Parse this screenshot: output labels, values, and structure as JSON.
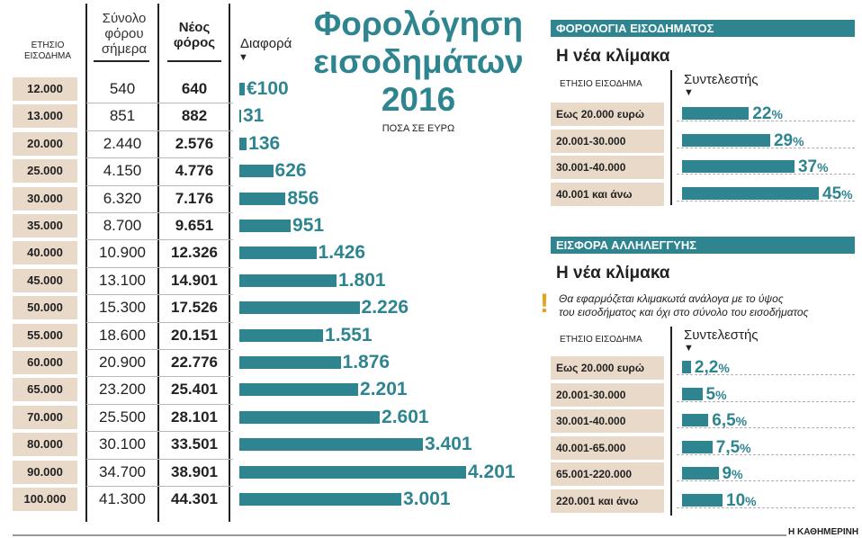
{
  "title": "Φορολόγηση εισοδημάτων 2016",
  "title_lines": [
    "Φορολόγηση",
    "εισοδημάτων",
    "2016"
  ],
  "subtitle": "ΠΟΣΑ ΣΕ ΕΥΡΩ",
  "columns": {
    "income": [
      "ΕΤΗΣΙΟ",
      "ΕΙΣΟΔΗΜΑ"
    ],
    "current_tax": [
      "Σύνολο",
      "φόρου",
      "σήμερα"
    ],
    "new_tax": [
      "Νέος",
      "φόρος"
    ],
    "difference": "Διαφορά",
    "arrow": "▼"
  },
  "colors": {
    "accent": "#2e8590",
    "cell_bg": "#e8d9c8"
  },
  "chart_data": [
    {
      "type": "bar",
      "orientation": "horizontal",
      "title": "Φορολόγηση εισοδημάτων 2016",
      "categories": [
        "12.000",
        "13.000",
        "20.000",
        "25.000",
        "30.000",
        "35.000",
        "40.000",
        "45.000",
        "50.000",
        "55.000",
        "60.000",
        "65.000",
        "70.000",
        "80.000",
        "90.000",
        "100.000"
      ],
      "current_tax": [
        "540",
        "851",
        "2.440",
        "4.150",
        "6.320",
        "8.700",
        "10.900",
        "13.100",
        "15.300",
        "18.600",
        "20.900",
        "23.200",
        "25.500",
        "30.100",
        "34.700",
        "41.300"
      ],
      "new_tax": [
        "640",
        "882",
        "2.576",
        "4.776",
        "7.176",
        "9.651",
        "12.326",
        "14.901",
        "17.526",
        "20.151",
        "22.776",
        "25.401",
        "28.101",
        "33.501",
        "38.901",
        "44.301"
      ],
      "values": [
        100,
        31,
        136,
        626,
        856,
        951,
        1426,
        1801,
        2226,
        1551,
        1876,
        2201,
        2601,
        3401,
        4201,
        3001
      ],
      "value_labels": [
        "€100",
        "31",
        "136",
        "626",
        "856",
        "951",
        "1.426",
        "1.801",
        "2.226",
        "1.551",
        "1.876",
        "2.201",
        "2.601",
        "3.401",
        "4.201",
        "3.001"
      ],
      "xlabel": "Διαφορά",
      "xlim": [
        0,
        4201
      ]
    },
    {
      "type": "bar",
      "orientation": "horizontal",
      "title": "ΦΟΡΟΛΟΓΙΑ ΕΙΣΟΔΗΜΑΤΟΣ",
      "subtitle": "Η νέα κλίμακα",
      "category_header": "ΕΤΗΣΙΟ ΕΙΣΟΔΗΜΑ",
      "value_header": "Συντελεστής",
      "categories": [
        "Εως 20.000 ευρώ",
        "20.001-30.000",
        "30.001-40.000",
        "40.001 και άνω"
      ],
      "values": [
        22,
        29,
        37,
        45
      ],
      "value_labels": [
        "22",
        "29",
        "37",
        "45"
      ],
      "unit": "%",
      "xlim": [
        0,
        45
      ]
    },
    {
      "type": "bar",
      "orientation": "horizontal",
      "title": "ΕΙΣΦΟΡΑ ΑΛΛΗΛΕΓΓΥΗΣ",
      "subtitle": "Η νέα κλίμακα",
      "note": [
        "Θα εφαρμόζεται κλιμακωτά ανάλογα με το ύψος",
        "του εισοδήματος και όχι στο σύνολο του εισοδήματος"
      ],
      "note_icon": "!",
      "category_header": "ΕΤΗΣΙΟ ΕΙΣΟΔΗΜΑ",
      "value_header": "Συντελεστής",
      "categories": [
        "Εως 20.000 ευρώ",
        "20.001-30.000",
        "30.001-40.000",
        "40.001-65.000",
        "65.001-220.000",
        "220.001 και άνω"
      ],
      "values": [
        2.2,
        5,
        6.5,
        7.5,
        9,
        10
      ],
      "value_labels": [
        "2,2",
        "5",
        "6,5",
        "7,5",
        "9",
        "10"
      ],
      "unit": "%",
      "xlim": [
        0,
        10
      ]
    }
  ],
  "footer": "Η ΚΑΘΗΜΕΡΙΝΗ"
}
